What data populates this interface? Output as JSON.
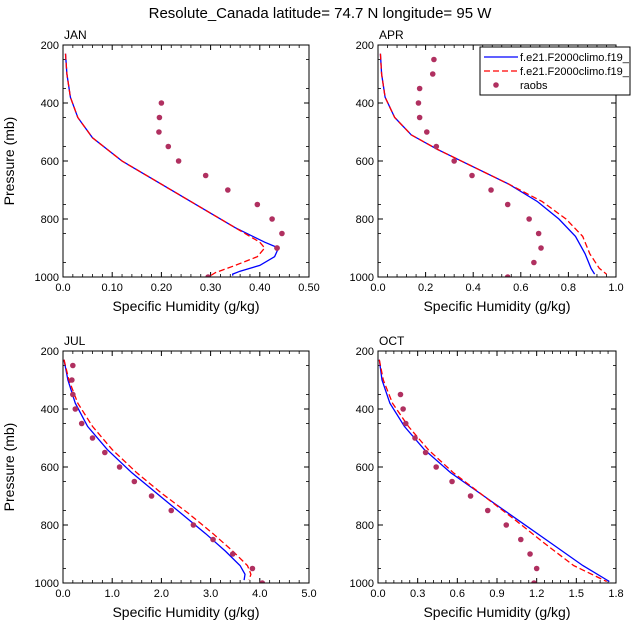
{
  "title": "Resolute_Canada  latitude= 74.7 N longitude= 95 W",
  "xlabel": "Specific Humidity (g/kg)",
  "ylabel": "Pressure (mb)",
  "colors": {
    "model1": "#0000ff",
    "model2": "#ff0000",
    "raobs": "#b03060"
  },
  "legend": {
    "placement": "top-right",
    "items": [
      "f.e21.F2000climo.f19_",
      "f.e21.F2000climo.f19_",
      "raobs"
    ]
  },
  "chart_data": [
    {
      "type": "line",
      "title": "JAN",
      "xlim": [
        0,
        0.5
      ],
      "ylim": [
        1000,
        200
      ],
      "reversed_y": true,
      "xticks": [
        "0.0",
        "0.10",
        "0.20",
        "0.30",
        "0.40",
        "0.50"
      ],
      "xtick_values": [
        0,
        0.1,
        0.2,
        0.3,
        0.4,
        0.5
      ],
      "yticks": [
        "200",
        "400",
        "600",
        "800",
        "1000"
      ],
      "ytick_values": [
        200,
        400,
        600,
        800,
        1000
      ],
      "series": [
        {
          "name": "f.e21.F2000climo.f19_",
          "style": "solid",
          "x": [
            0.005,
            0.008,
            0.015,
            0.03,
            0.06,
            0.12,
            0.2,
            0.28,
            0.35,
            0.41,
            0.438,
            0.43,
            0.4,
            0.36,
            0.345,
            0.345
          ],
          "y": [
            230,
            300,
            380,
            450,
            520,
            600,
            680,
            760,
            830,
            880,
            900,
            930,
            960,
            980,
            990,
            995
          ]
        },
        {
          "name": "f.e21.F2000climo.f19_",
          "style": "dashed",
          "x": [
            0.005,
            0.008,
            0.015,
            0.03,
            0.06,
            0.12,
            0.2,
            0.28,
            0.35,
            0.4,
            0.41,
            0.395,
            0.35,
            0.31,
            0.3
          ],
          "y": [
            230,
            300,
            380,
            450,
            520,
            600,
            680,
            760,
            830,
            880,
            900,
            930,
            960,
            985,
            995
          ]
        },
        {
          "name": "raobs",
          "style": "markers",
          "x": [
            0.2,
            0.196,
            0.195,
            0.214,
            0.235,
            0.29,
            0.335,
            0.395,
            0.425,
            0.445,
            0.435,
            0.435,
            0.295
          ],
          "y": [
            400,
            450,
            500,
            550,
            600,
            650,
            700,
            750,
            800,
            850,
            900,
            900,
            1000
          ]
        }
      ]
    },
    {
      "type": "line",
      "title": "APR",
      "xlim": [
        0,
        1.0
      ],
      "ylim": [
        1000,
        200
      ],
      "reversed_y": true,
      "xticks": [
        "0.0",
        "0.2",
        "0.4",
        "0.6",
        "0.8",
        "1.0"
      ],
      "xtick_values": [
        0,
        0.2,
        0.4,
        0.6,
        0.8,
        1.0
      ],
      "yticks": [
        "200",
        "400",
        "600",
        "800",
        "1000"
      ],
      "ytick_values": [
        200,
        400,
        600,
        800,
        1000
      ],
      "series": [
        {
          "name": "f.e21.F2000climo.f19_",
          "style": "solid",
          "x": [
            0.01,
            0.015,
            0.03,
            0.07,
            0.14,
            0.25,
            0.4,
            0.55,
            0.67,
            0.76,
            0.83,
            0.87,
            0.895,
            0.91
          ],
          "y": [
            230,
            300,
            380,
            450,
            510,
            560,
            620,
            680,
            740,
            800,
            860,
            920,
            970,
            990
          ]
        },
        {
          "name": "f.e21.F2000climo.f19_",
          "style": "dashed",
          "x": [
            0.01,
            0.015,
            0.03,
            0.07,
            0.14,
            0.25,
            0.4,
            0.55,
            0.69,
            0.79,
            0.86,
            0.89,
            0.93,
            0.96
          ],
          "y": [
            230,
            300,
            380,
            450,
            510,
            560,
            620,
            680,
            740,
            800,
            860,
            920,
            970,
            990
          ]
        },
        {
          "name": "raobs",
          "style": "markers",
          "x": [
            0.235,
            0.23,
            0.175,
            0.17,
            0.175,
            0.205,
            0.245,
            0.32,
            0.395,
            0.475,
            0.545,
            0.635,
            0.675,
            0.685,
            0.655,
            0.545
          ],
          "y": [
            250,
            300,
            350,
            400,
            450,
            500,
            550,
            600,
            650,
            700,
            750,
            800,
            850,
            900,
            950,
            1000
          ]
        }
      ]
    },
    {
      "type": "line",
      "title": "JUL",
      "xlim": [
        0,
        5.0
      ],
      "ylim": [
        1000,
        200
      ],
      "reversed_y": true,
      "xticks": [
        "0.0",
        "1.0",
        "2.0",
        "3.0",
        "4.0",
        "5.0"
      ],
      "xtick_values": [
        0,
        1,
        2,
        3,
        4,
        5
      ],
      "yticks": [
        "200",
        "400",
        "600",
        "800",
        "1000"
      ],
      "ytick_values": [
        200,
        400,
        600,
        800,
        1000
      ],
      "series": [
        {
          "name": "f.e21.F2000climo.f19_",
          "style": "solid",
          "x": [
            0.02,
            0.1,
            0.25,
            0.5,
            0.9,
            1.4,
            1.9,
            2.4,
            2.9,
            3.3,
            3.6,
            3.7,
            3.68
          ],
          "y": [
            230,
            300,
            380,
            460,
            540,
            620,
            690,
            760,
            830,
            890,
            940,
            970,
            990
          ]
        },
        {
          "name": "f.e21.F2000climo.f19_",
          "style": "dashed",
          "x": [
            0.02,
            0.12,
            0.3,
            0.6,
            1.0,
            1.5,
            2.0,
            2.55,
            3.05,
            3.45,
            3.75,
            3.82,
            3.78
          ],
          "y": [
            230,
            300,
            380,
            460,
            540,
            620,
            690,
            760,
            830,
            890,
            940,
            970,
            990
          ]
        },
        {
          "name": "raobs",
          "style": "markers",
          "x": [
            0.2,
            0.18,
            0.2,
            0.25,
            0.38,
            0.6,
            0.85,
            1.15,
            1.45,
            1.8,
            2.2,
            2.65,
            3.05,
            3.45,
            3.85,
            4.05
          ],
          "y": [
            250,
            300,
            350,
            400,
            450,
            500,
            550,
            600,
            650,
            700,
            750,
            800,
            850,
            900,
            950,
            1000
          ]
        }
      ]
    },
    {
      "type": "line",
      "title": "OCT",
      "xlim": [
        0,
        1.8
      ],
      "ylim": [
        1000,
        200
      ],
      "reversed_y": true,
      "xticks": [
        "0.0",
        "0.3",
        "0.6",
        "0.9",
        "1.2",
        "1.5",
        "1.8"
      ],
      "xtick_values": [
        0,
        0.3,
        0.6,
        0.9,
        1.2,
        1.5,
        1.8
      ],
      "yticks": [
        "200",
        "400",
        "600",
        "800",
        "1000"
      ],
      "ytick_values": [
        200,
        400,
        600,
        800,
        1000
      ],
      "series": [
        {
          "name": "f.e21.F2000climo.f19_",
          "style": "solid",
          "x": [
            0.01,
            0.03,
            0.09,
            0.2,
            0.35,
            0.55,
            0.8,
            1.05,
            1.3,
            1.55,
            1.75
          ],
          "y": [
            230,
            300,
            380,
            460,
            540,
            620,
            700,
            780,
            860,
            940,
            995
          ]
        },
        {
          "name": "f.e21.F2000climo.f19_",
          "style": "dashed",
          "x": [
            0.01,
            0.04,
            0.11,
            0.23,
            0.38,
            0.57,
            0.8,
            1.03,
            1.25,
            1.48,
            1.73
          ],
          "y": [
            230,
            300,
            380,
            460,
            540,
            620,
            700,
            780,
            860,
            940,
            995
          ]
        },
        {
          "name": "raobs",
          "style": "markers",
          "x": [
            0.17,
            0.19,
            0.21,
            0.28,
            0.36,
            0.44,
            0.56,
            0.7,
            0.83,
            0.97,
            1.08,
            1.15,
            1.2,
            1.18
          ],
          "y": [
            350,
            400,
            450,
            500,
            550,
            600,
            650,
            700,
            750,
            800,
            850,
            900,
            950,
            1000
          ]
        }
      ]
    }
  ]
}
